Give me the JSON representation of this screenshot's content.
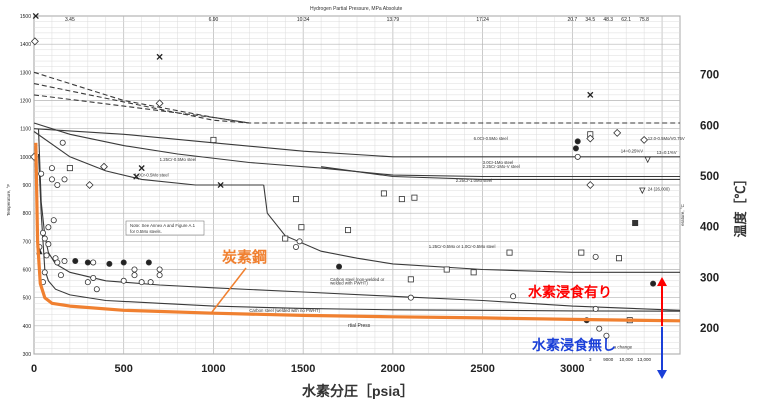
{
  "chart_data": {
    "type": "line",
    "top_axis": {
      "title": "Hydrogen Partial Pressure, MPa Absolute",
      "ticks": [
        {
          "x": 200,
          "label": "3.45"
        },
        {
          "x": 1000,
          "label": "6.90"
        },
        {
          "x": 1500,
          "label": "10.34"
        },
        {
          "x": 2000,
          "label": "13.79"
        },
        {
          "x": 2500,
          "label": "17.24"
        },
        {
          "x": 3000,
          "label": "20.7"
        },
        {
          "x": 3100,
          "label": "34.5"
        },
        {
          "x": 3200,
          "label": "48.3"
        },
        {
          "x": 3300,
          "label": "62.1"
        },
        {
          "x": 3400,
          "label": "75.8"
        }
      ]
    },
    "xlabel": "水素分圧［psia］",
    "xlim": [
      0,
      3600
    ],
    "x_ticks": [
      0,
      500,
      1000,
      1500,
      2000,
      2500,
      3000
    ],
    "x_tail_labels": [
      {
        "x": 3100,
        "label": "3"
      },
      {
        "x": 3200,
        "label": "9000"
      },
      {
        "x": 3300,
        "label": "10,000"
      },
      {
        "x": 3400,
        "label": "13,000"
      }
    ],
    "left_axis": {
      "label": "Temperature, °F",
      "ylim": [
        300,
        1500
      ],
      "ticks": [
        300,
        400,
        500,
        600,
        700,
        800,
        900,
        1000,
        1100,
        1200,
        1300,
        1400,
        1500
      ]
    },
    "right_axis": {
      "label": "温度［℃］",
      "small_label": "erature, °C",
      "ticks": [
        200,
        300,
        400,
        500,
        600,
        700
      ]
    },
    "curves": [
      {
        "name": "Carbon steel (welded with no PWHT)",
        "style": "solid",
        "points": [
          [
            25,
            1010
          ],
          [
            40,
            800
          ],
          [
            60,
            600
          ],
          [
            80,
            560
          ],
          [
            120,
            530
          ],
          [
            200,
            510
          ],
          [
            400,
            490
          ],
          [
            700,
            480
          ],
          [
            1000,
            470
          ],
          [
            1500,
            462
          ],
          [
            2000,
            457
          ],
          [
            2500,
            455
          ],
          [
            3000,
            453
          ],
          [
            3600,
            452
          ]
        ]
      },
      {
        "name": "Carbon steel (non-welded or welded with PWHT)",
        "style": "solid",
        "points": [
          [
            25,
            1100
          ],
          [
            40,
            840
          ],
          [
            60,
            720
          ],
          [
            80,
            660
          ],
          [
            120,
            620
          ],
          [
            200,
            590
          ],
          [
            400,
            560
          ],
          [
            700,
            545
          ],
          [
            1000,
            535
          ],
          [
            1500,
            520
          ],
          [
            2000,
            505
          ],
          [
            2500,
            490
          ],
          [
            3000,
            470
          ],
          [
            3600,
            455
          ]
        ]
      },
      {
        "name": "1.25Cr-0.5Mo or 1.0Cr-0.5Mo steel",
        "style": "solid",
        "points": [
          [
            1280,
            900
          ],
          [
            1300,
            800
          ],
          [
            1400,
            720
          ],
          [
            1600,
            665
          ],
          [
            1800,
            640
          ],
          [
            2000,
            620
          ],
          [
            2500,
            600
          ],
          [
            3000,
            590
          ],
          [
            3600,
            590
          ]
        ]
      },
      {
        "name": "1.0Cr-0.5Mo steel",
        "style": "solid",
        "points": [
          [
            0,
            1090
          ],
          [
            200,
            1000
          ],
          [
            400,
            950
          ],
          [
            600,
            920
          ],
          [
            900,
            900
          ],
          [
            1280,
            900
          ]
        ]
      },
      {
        "name": "1.25Cr-0.5Mo steel",
        "style": "solid",
        "points": [
          [
            0,
            1120
          ],
          [
            200,
            1080
          ],
          [
            500,
            1040
          ],
          [
            800,
            1010
          ],
          [
            1200,
            980
          ],
          [
            1600,
            960
          ],
          [
            2000,
            935
          ],
          [
            2500,
            930
          ],
          [
            3600,
            930
          ]
        ]
      },
      {
        "name": "2.25Cr-1.0Mo steel",
        "style": "solid",
        "points": [
          [
            1600,
            965
          ],
          [
            2000,
            930
          ],
          [
            2500,
            920
          ],
          [
            3600,
            920
          ]
        ]
      },
      {
        "name": "3.0Cr-1Mo steel / 2.25Cr-1Mo-V steel",
        "style": "solid",
        "points": [
          [
            0,
            1100
          ],
          [
            500,
            1080
          ],
          [
            1000,
            1050
          ],
          [
            1500,
            1020
          ],
          [
            2000,
            1000
          ],
          [
            2500,
            1000
          ],
          [
            3600,
            1000
          ]
        ]
      },
      {
        "name": "6.0Cr-0.5Mo steel",
        "style": "dashed",
        "points": [
          [
            0,
            1260
          ],
          [
            1000,
            1130
          ],
          [
            1200,
            1120
          ],
          [
            3600,
            1120
          ]
        ]
      },
      {
        "name": "dashed-2",
        "style": "dashed",
        "points": [
          [
            0,
            1220
          ],
          [
            500,
            1180
          ],
          [
            1000,
            1140
          ],
          [
            1200,
            1120
          ]
        ]
      },
      {
        "name": "dashed-3",
        "style": "dashed",
        "points": [
          [
            0,
            1300
          ],
          [
            500,
            1200
          ],
          [
            1000,
            1140
          ],
          [
            1200,
            1120
          ]
        ]
      }
    ],
    "curve_labels": [
      {
        "x": 2450,
        "y": 1060,
        "text": "6.0Cr-0.5Mo steel"
      },
      {
        "x": 2500,
        "y": 975,
        "text": "3.0Cr-1Mo steel"
      },
      {
        "x": 2500,
        "y": 960,
        "text": "2.25Cr-1Mo-V steel"
      },
      {
        "x": 2350,
        "y": 910,
        "text": "2.25Cr-1.0Mo steel"
      },
      {
        "x": 700,
        "y": 985,
        "text": "1.25Cr-0.5Mo steel"
      },
      {
        "x": 560,
        "y": 930,
        "text": "1.0Cr-0.5Mo steel"
      },
      {
        "x": 2200,
        "y": 676,
        "text": "1.25Cr-0.5Mo or 1.0Cr-0.5Mo steel"
      },
      {
        "x": 1650,
        "y": 560,
        "text": "Carbon steel (non-welded or"
      },
      {
        "x": 1650,
        "y": 547,
        "text": "welded with PWHT)"
      },
      {
        "x": 1200,
        "y": 450,
        "text": "Carbon steel (welded with no PWHT)"
      },
      {
        "x": 3420,
        "y": 1060,
        "text": "12.0-0.5Mo/V0.75V"
      },
      {
        "x": 3470,
        "y": 1010,
        "text": "13=0.1%V"
      },
      {
        "x": 3270,
        "y": 1015,
        "text": "14=0.25%V"
      },
      {
        "x": 3420,
        "y": 880,
        "text": "24 (26,000)"
      }
    ],
    "note": {
      "line1": "Note: See Annex A and Figure A.1",
      "line2": "for 0.5Mo steels."
    },
    "faint_label": {
      "x": 1750,
      "y": 395,
      "text": "rtial Press"
    },
    "faint_label2": {
      "x": 3230,
      "y": 320,
      "text": "a change"
    },
    "series": [
      {
        "name": "data",
        "marker": "mixed",
        "points": [
          [
            10,
            1500,
            "x"
          ],
          [
            5,
            1410,
            "d"
          ],
          [
            700,
            1355,
            "x"
          ],
          [
            3100,
            1220,
            "x"
          ],
          [
            700,
            1190,
            "d"
          ],
          [
            3100,
            1080,
            "s"
          ],
          [
            3250,
            1085,
            "d"
          ],
          [
            3100,
            1065,
            "d"
          ],
          [
            3030,
            1055,
            "f"
          ],
          [
            3020,
            1030,
            "f"
          ],
          [
            1000,
            1060,
            "s"
          ],
          [
            160,
            1050,
            "o"
          ],
          [
            0,
            1000,
            "d"
          ],
          [
            100,
            960,
            "o"
          ],
          [
            200,
            960,
            "s"
          ],
          [
            390,
            965,
            "d"
          ],
          [
            600,
            960,
            "x"
          ],
          [
            3030,
            1000,
            "o"
          ],
          [
            3400,
            1060,
            "d"
          ],
          [
            3420,
            990,
            "v"
          ],
          [
            3100,
            900,
            "d"
          ],
          [
            3390,
            880,
            "v"
          ],
          [
            40,
            940,
            "o"
          ],
          [
            100,
            920,
            "o"
          ],
          [
            130,
            900,
            "o"
          ],
          [
            170,
            920,
            "o"
          ],
          [
            310,
            900,
            "d"
          ],
          [
            570,
            930,
            "x"
          ],
          [
            1040,
            900,
            "x"
          ],
          [
            1460,
            850,
            "s"
          ],
          [
            1950,
            870,
            "s"
          ],
          [
            2120,
            855,
            "s"
          ],
          [
            2050,
            850,
            "s"
          ],
          [
            110,
            775,
            "o"
          ],
          [
            80,
            750,
            "o"
          ],
          [
            50,
            730,
            "o"
          ],
          [
            60,
            710,
            "o"
          ],
          [
            80,
            690,
            "o"
          ],
          [
            30,
            680,
            "o"
          ],
          [
            30,
            665,
            "*"
          ],
          [
            70,
            650,
            "o"
          ],
          [
            120,
            640,
            "o"
          ],
          [
            130,
            625,
            "o"
          ],
          [
            170,
            630,
            "o"
          ],
          [
            230,
            630,
            "f"
          ],
          [
            300,
            625,
            "f"
          ],
          [
            330,
            625,
            "o"
          ],
          [
            420,
            620,
            "f"
          ],
          [
            500,
            625,
            "f"
          ],
          [
            640,
            625,
            "f"
          ],
          [
            560,
            600,
            "o"
          ],
          [
            700,
            600,
            "o"
          ],
          [
            700,
            580,
            "o"
          ],
          [
            560,
            580,
            "o"
          ],
          [
            330,
            570,
            "o"
          ],
          [
            150,
            580,
            "o"
          ],
          [
            60,
            590,
            "o"
          ],
          [
            50,
            555,
            "o"
          ],
          [
            300,
            555,
            "o"
          ],
          [
            350,
            530,
            "o"
          ],
          [
            500,
            560,
            "o"
          ],
          [
            600,
            555,
            "o"
          ],
          [
            650,
            555,
            "o"
          ],
          [
            1400,
            710,
            "s"
          ],
          [
            1490,
            750,
            "s"
          ],
          [
            1750,
            740,
            "s"
          ],
          [
            1460,
            680,
            "o"
          ],
          [
            1480,
            700,
            "o"
          ],
          [
            2650,
            660,
            "s"
          ],
          [
            3050,
            660,
            "s"
          ],
          [
            3260,
            640,
            "s"
          ],
          [
            2300,
            600,
            "s"
          ],
          [
            2100,
            565,
            "s"
          ],
          [
            1700,
            610,
            "f"
          ],
          [
            2450,
            590,
            "s"
          ],
          [
            3450,
            550,
            "f"
          ],
          [
            3350,
            765,
            "q"
          ],
          [
            3130,
            645,
            "o"
          ],
          [
            3080,
            420,
            "f"
          ],
          [
            3130,
            460,
            "o"
          ],
          [
            2670,
            505,
            "o"
          ],
          [
            2100,
            500,
            "o"
          ],
          [
            3150,
            390,
            "o"
          ],
          [
            3190,
            365,
            "o"
          ],
          [
            3320,
            420,
            "s"
          ]
        ]
      }
    ],
    "orange_curve": {
      "name": "炭素鋼",
      "points": [
        [
          10,
          1050
        ],
        [
          20,
          700
        ],
        [
          35,
          550
        ],
        [
          60,
          500
        ],
        [
          100,
          480
        ],
        [
          200,
          470
        ],
        [
          500,
          455
        ],
        [
          1000,
          445
        ],
        [
          1500,
          437
        ],
        [
          2000,
          432
        ],
        [
          2500,
          428
        ],
        [
          3000,
          423
        ],
        [
          3600,
          418
        ]
      ]
    },
    "annotations": {
      "carbon_steel": "炭素鋼",
      "corrosion_yes": "水素浸食有り",
      "corrosion_no": "水素浸食無し",
      "colors": {
        "orange": "#f08030",
        "red": "#ff0000",
        "blue": "#1a3fd8"
      }
    }
  }
}
